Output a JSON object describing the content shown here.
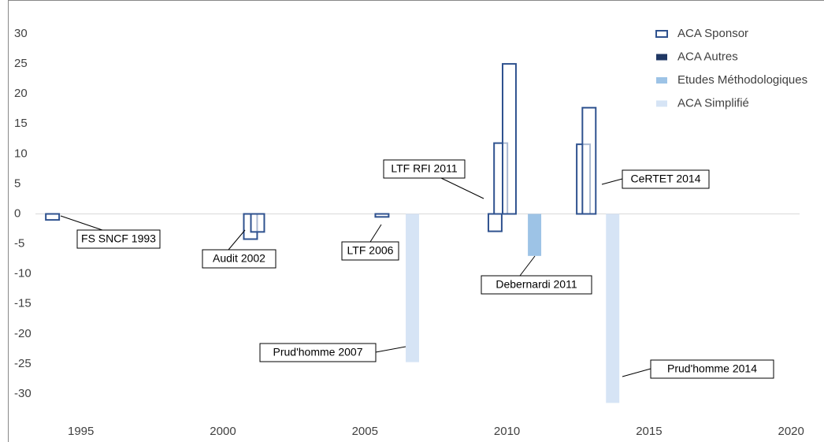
{
  "chart_data": {
    "type": "bar",
    "xlim": [
      1993.4,
      2020.3
    ],
    "xticks": [
      1995,
      2000,
      2005,
      2010,
      2015,
      2020
    ],
    "ylim": [
      -33,
      32
    ],
    "yticks": [
      30,
      25,
      20,
      15,
      10,
      5,
      0,
      -5,
      -10,
      -15,
      -20,
      -25,
      -30
    ],
    "legend": "top-right",
    "series": [
      {
        "name": "ACA Sponsor",
        "color": "#2f528f",
        "outline": true,
        "x": [
          1994.0,
          2000.97,
          2001.22,
          2005.6,
          2009.58,
          2009.78,
          2010.08,
          2012.69,
          2012.89
        ],
        "values": [
          -1,
          -4.2,
          -3,
          -0.5,
          -2.9,
          11.8,
          25,
          11.6,
          17.7
        ]
      },
      {
        "name": "ACA Autres",
        "color": "#203864",
        "x": [],
        "values": []
      },
      {
        "name": "Etudes Méthodologiques",
        "color": "#9dc3e6",
        "x": [
          2010.97
        ],
        "values": [
          -7
        ]
      },
      {
        "name": "ACA Simplifié",
        "color": "#d6e4f5",
        "x": [
          2006.67,
          2013.72
        ],
        "values": [
          -24.7,
          -31.5
        ]
      }
    ],
    "annotations": [
      "FS SNCF 1993",
      "Audit 2002",
      "LTF 2006",
      "LTF RFI 2011",
      "Debernardi 2011",
      "CeRTET 2014",
      "Prud'homme 2007",
      "Prud'homme 2014"
    ]
  }
}
